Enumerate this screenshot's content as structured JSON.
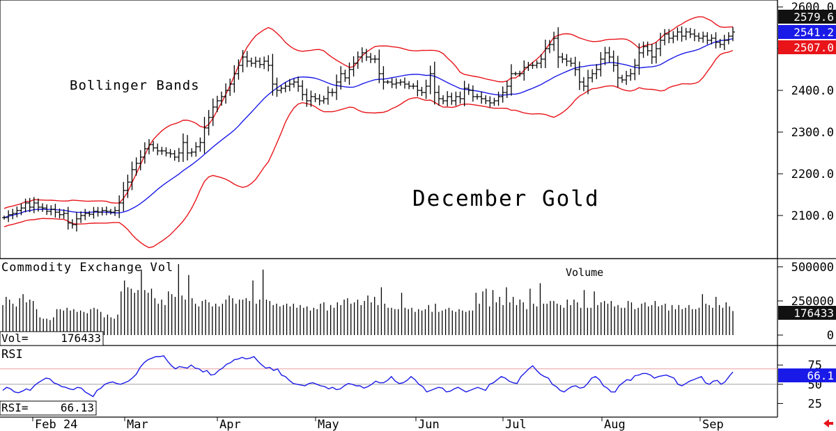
{
  "chart_data": [
    {
      "type": "ohlc",
      "title": "December Gold",
      "annotation": "Bollinger Bands",
      "ylim": [
        2020,
        2610
      ],
      "y_ticks": [
        "2100.0",
        "2200.0",
        "2300.0",
        "2400.0",
        "2500.0",
        "2600.0"
      ],
      "tick_values": [
        2100,
        2200,
        2300,
        2400,
        2500,
        2600
      ],
      "value_tags": {
        "upper_band": "2579.6",
        "middle_band": "2541.2",
        "lower_band": "2507.0"
      },
      "colors": {
        "upper": "#e8141a",
        "middle": "#1a1ae8",
        "lower": "#e8141a",
        "bars": "#000000"
      },
      "closes": [
        2095,
        2102,
        2105,
        2112,
        2118,
        2130,
        2120,
        2130,
        2120,
        2118,
        2110,
        2115,
        2108,
        2102,
        2105,
        2082,
        2078,
        2092,
        2100,
        2105,
        2103,
        2110,
        2108,
        2112,
        2110,
        2108,
        2112,
        2130,
        2160,
        2180,
        2210,
        2225,
        2240,
        2260,
        2270,
        2262,
        2255,
        2255,
        2250,
        2248,
        2240,
        2250,
        2275,
        2250,
        2252,
        2265,
        2275,
        2310,
        2335,
        2360,
        2375,
        2385,
        2400,
        2415,
        2440,
        2460,
        2480,
        2470,
        2465,
        2470,
        2462,
        2470,
        2460,
        2415,
        2400,
        2405,
        2410,
        2415,
        2420,
        2410,
        2390,
        2375,
        2385,
        2380,
        2375,
        2380,
        2395,
        2395,
        2420,
        2440,
        2430,
        2450,
        2465,
        2480,
        2490,
        2480,
        2475,
        2475,
        2440,
        2420,
        2420,
        2415,
        2418,
        2420,
        2415,
        2410,
        2410,
        2400,
        2395,
        2410,
        2440,
        2395,
        2380,
        2375,
        2385,
        2375,
        2385,
        2380,
        2405,
        2400,
        2385,
        2385,
        2380,
        2375,
        2370,
        2375,
        2385,
        2395,
        2410,
        2440,
        2440,
        2440,
        2455,
        2460,
        2460,
        2465,
        2475,
        2500,
        2510,
        2525,
        2480,
        2475,
        2470,
        2465,
        2450,
        2420,
        2410,
        2430,
        2440,
        2450,
        2475,
        2490,
        2480,
        2460,
        2430,
        2425,
        2435,
        2440,
        2460,
        2490,
        2505,
        2495,
        2480,
        2500,
        2520,
        2535,
        2525,
        2530,
        2540,
        2530,
        2540,
        2535,
        2530,
        2525,
        2530,
        2520,
        2525,
        2515,
        2510,
        2520,
        2530,
        2540
      ],
      "price_x_start": 6,
      "series_end_x": 1052
    },
    {
      "type": "bar",
      "title": "Commodity Exchange Vol",
      "series_label": "Volume",
      "readout_label": "Vol=",
      "readout_value": "176433",
      "value_tag": "176433",
      "ylim": [
        0,
        540000
      ],
      "y_ticks": [
        "500000",
        "250000",
        "0"
      ],
      "tick_values": [
        500000,
        250000,
        0
      ],
      "values": [
        220000,
        280000,
        260000,
        230000,
        210000,
        270000,
        300000,
        240000,
        260000,
        250000,
        190000,
        130000,
        120000,
        120000,
        110000,
        130000,
        190000,
        190000,
        180000,
        200000,
        180000,
        190000,
        170000,
        180000,
        170000,
        160000,
        190000,
        200000,
        190000,
        170000,
        130000,
        150000,
        130000,
        120000,
        150000,
        320000,
        400000,
        350000,
        340000,
        310000,
        330000,
        480000,
        330000,
        310000,
        340000,
        270000,
        230000,
        260000,
        220000,
        320000,
        300000,
        280000,
        520000,
        290000,
        260000,
        440000,
        270000,
        230000,
        210000,
        250000,
        260000,
        240000,
        210000,
        230000,
        210000,
        230000,
        260000,
        290000,
        270000,
        230000,
        260000,
        260000,
        270000,
        250000,
        400000,
        230000,
        260000,
        480000,
        260000,
        250000,
        220000,
        230000,
        210000,
        220000,
        230000,
        210000,
        230000,
        200000,
        220000,
        200000,
        210000,
        180000,
        200000,
        190000,
        230000,
        240000,
        180000,
        220000,
        200000,
        240000,
        220000,
        260000,
        270000,
        230000,
        240000,
        260000,
        220000,
        250000,
        290000,
        240000,
        280000,
        220000,
        350000,
        230000,
        200000,
        200000,
        190000,
        190000,
        310000,
        200000,
        190000,
        200000,
        170000,
        190000,
        180000,
        190000,
        220000,
        170000,
        230000,
        170000,
        180000,
        190000,
        200000,
        180000,
        170000,
        190000,
        180000,
        170000,
        180000,
        180000,
        310000,
        230000,
        320000,
        340000,
        210000,
        330000,
        240000,
        280000,
        220000,
        350000,
        240000,
        280000,
        220000,
        260000,
        240000,
        190000,
        340000,
        230000,
        210000,
        380000,
        230000,
        230000,
        250000,
        250000,
        230000,
        220000,
        200000,
        260000,
        220000,
        260000,
        240000,
        200000,
        330000,
        200000,
        200000,
        320000,
        220000,
        240000,
        250000,
        230000,
        250000,
        210000,
        220000,
        200000,
        200000,
        250000,
        240000,
        190000,
        200000,
        230000,
        240000,
        210000,
        220000,
        250000,
        210000,
        220000,
        230000,
        180000,
        220000,
        190000,
        220000,
        190000,
        200000,
        220000,
        190000,
        190000,
        200000,
        300000,
        230000,
        220000,
        200000,
        280000,
        220000,
        200000,
        240000,
        210000,
        176433
      ]
    },
    {
      "type": "line",
      "title": "RSI",
      "readout_label": "RSI=",
      "readout_value": "66.13",
      "value_tag": "66.1",
      "ylim": [
        10,
        95
      ],
      "y_ticks": [
        "75",
        "50",
        "25"
      ],
      "tick_values": [
        75,
        50,
        25
      ],
      "reference_lines": [
        70,
        50
      ],
      "values": [
        42,
        46,
        44,
        40,
        39,
        41,
        44,
        42,
        48,
        52,
        55,
        58,
        57,
        52,
        50,
        47,
        46,
        44,
        43,
        46,
        45,
        40,
        37,
        34,
        42,
        45,
        50,
        52,
        53,
        51,
        50,
        52,
        54,
        58,
        63,
        72,
        78,
        82,
        84,
        86,
        86,
        87,
        80,
        74,
        70,
        73,
        72,
        71,
        75,
        71,
        70,
        66,
        68,
        62,
        63,
        68,
        71,
        76,
        78,
        82,
        83,
        85,
        83,
        84,
        86,
        80,
        75,
        71,
        72,
        68,
        70,
        62,
        60,
        55,
        51,
        50,
        49,
        48,
        51,
        52,
        50,
        48,
        47,
        44,
        46,
        43,
        44,
        48,
        51,
        50,
        48,
        48,
        45,
        47,
        50,
        54,
        52,
        52,
        55,
        60,
        54,
        51,
        52,
        55,
        60,
        56,
        50,
        47,
        40,
        42,
        44,
        46,
        45,
        40,
        41,
        44,
        46,
        43,
        40,
        42,
        44,
        46,
        44,
        42,
        50,
        52,
        56,
        60,
        58,
        54,
        52,
        51,
        60,
        65,
        70,
        74,
        68,
        63,
        60,
        58,
        50,
        47,
        42,
        40,
        44,
        47,
        48,
        45,
        46,
        51,
        58,
        60,
        56,
        48,
        45,
        40,
        40,
        48,
        52,
        56,
        55,
        61,
        62,
        64,
        64,
        62,
        58,
        60,
        61,
        62,
        60,
        58,
        50,
        48,
        51,
        54,
        56,
        58,
        60,
        52,
        50,
        54,
        55,
        50,
        53,
        60,
        66
      ],
      "x_labels": [
        "Feb 24",
        "Mar",
        "Apr",
        "May",
        "Jun",
        "Jul",
        "Aug",
        "Sep"
      ],
      "x_label_values": [
        47,
        179,
        312,
        453,
        597,
        722,
        864,
        1005
      ]
    }
  ]
}
